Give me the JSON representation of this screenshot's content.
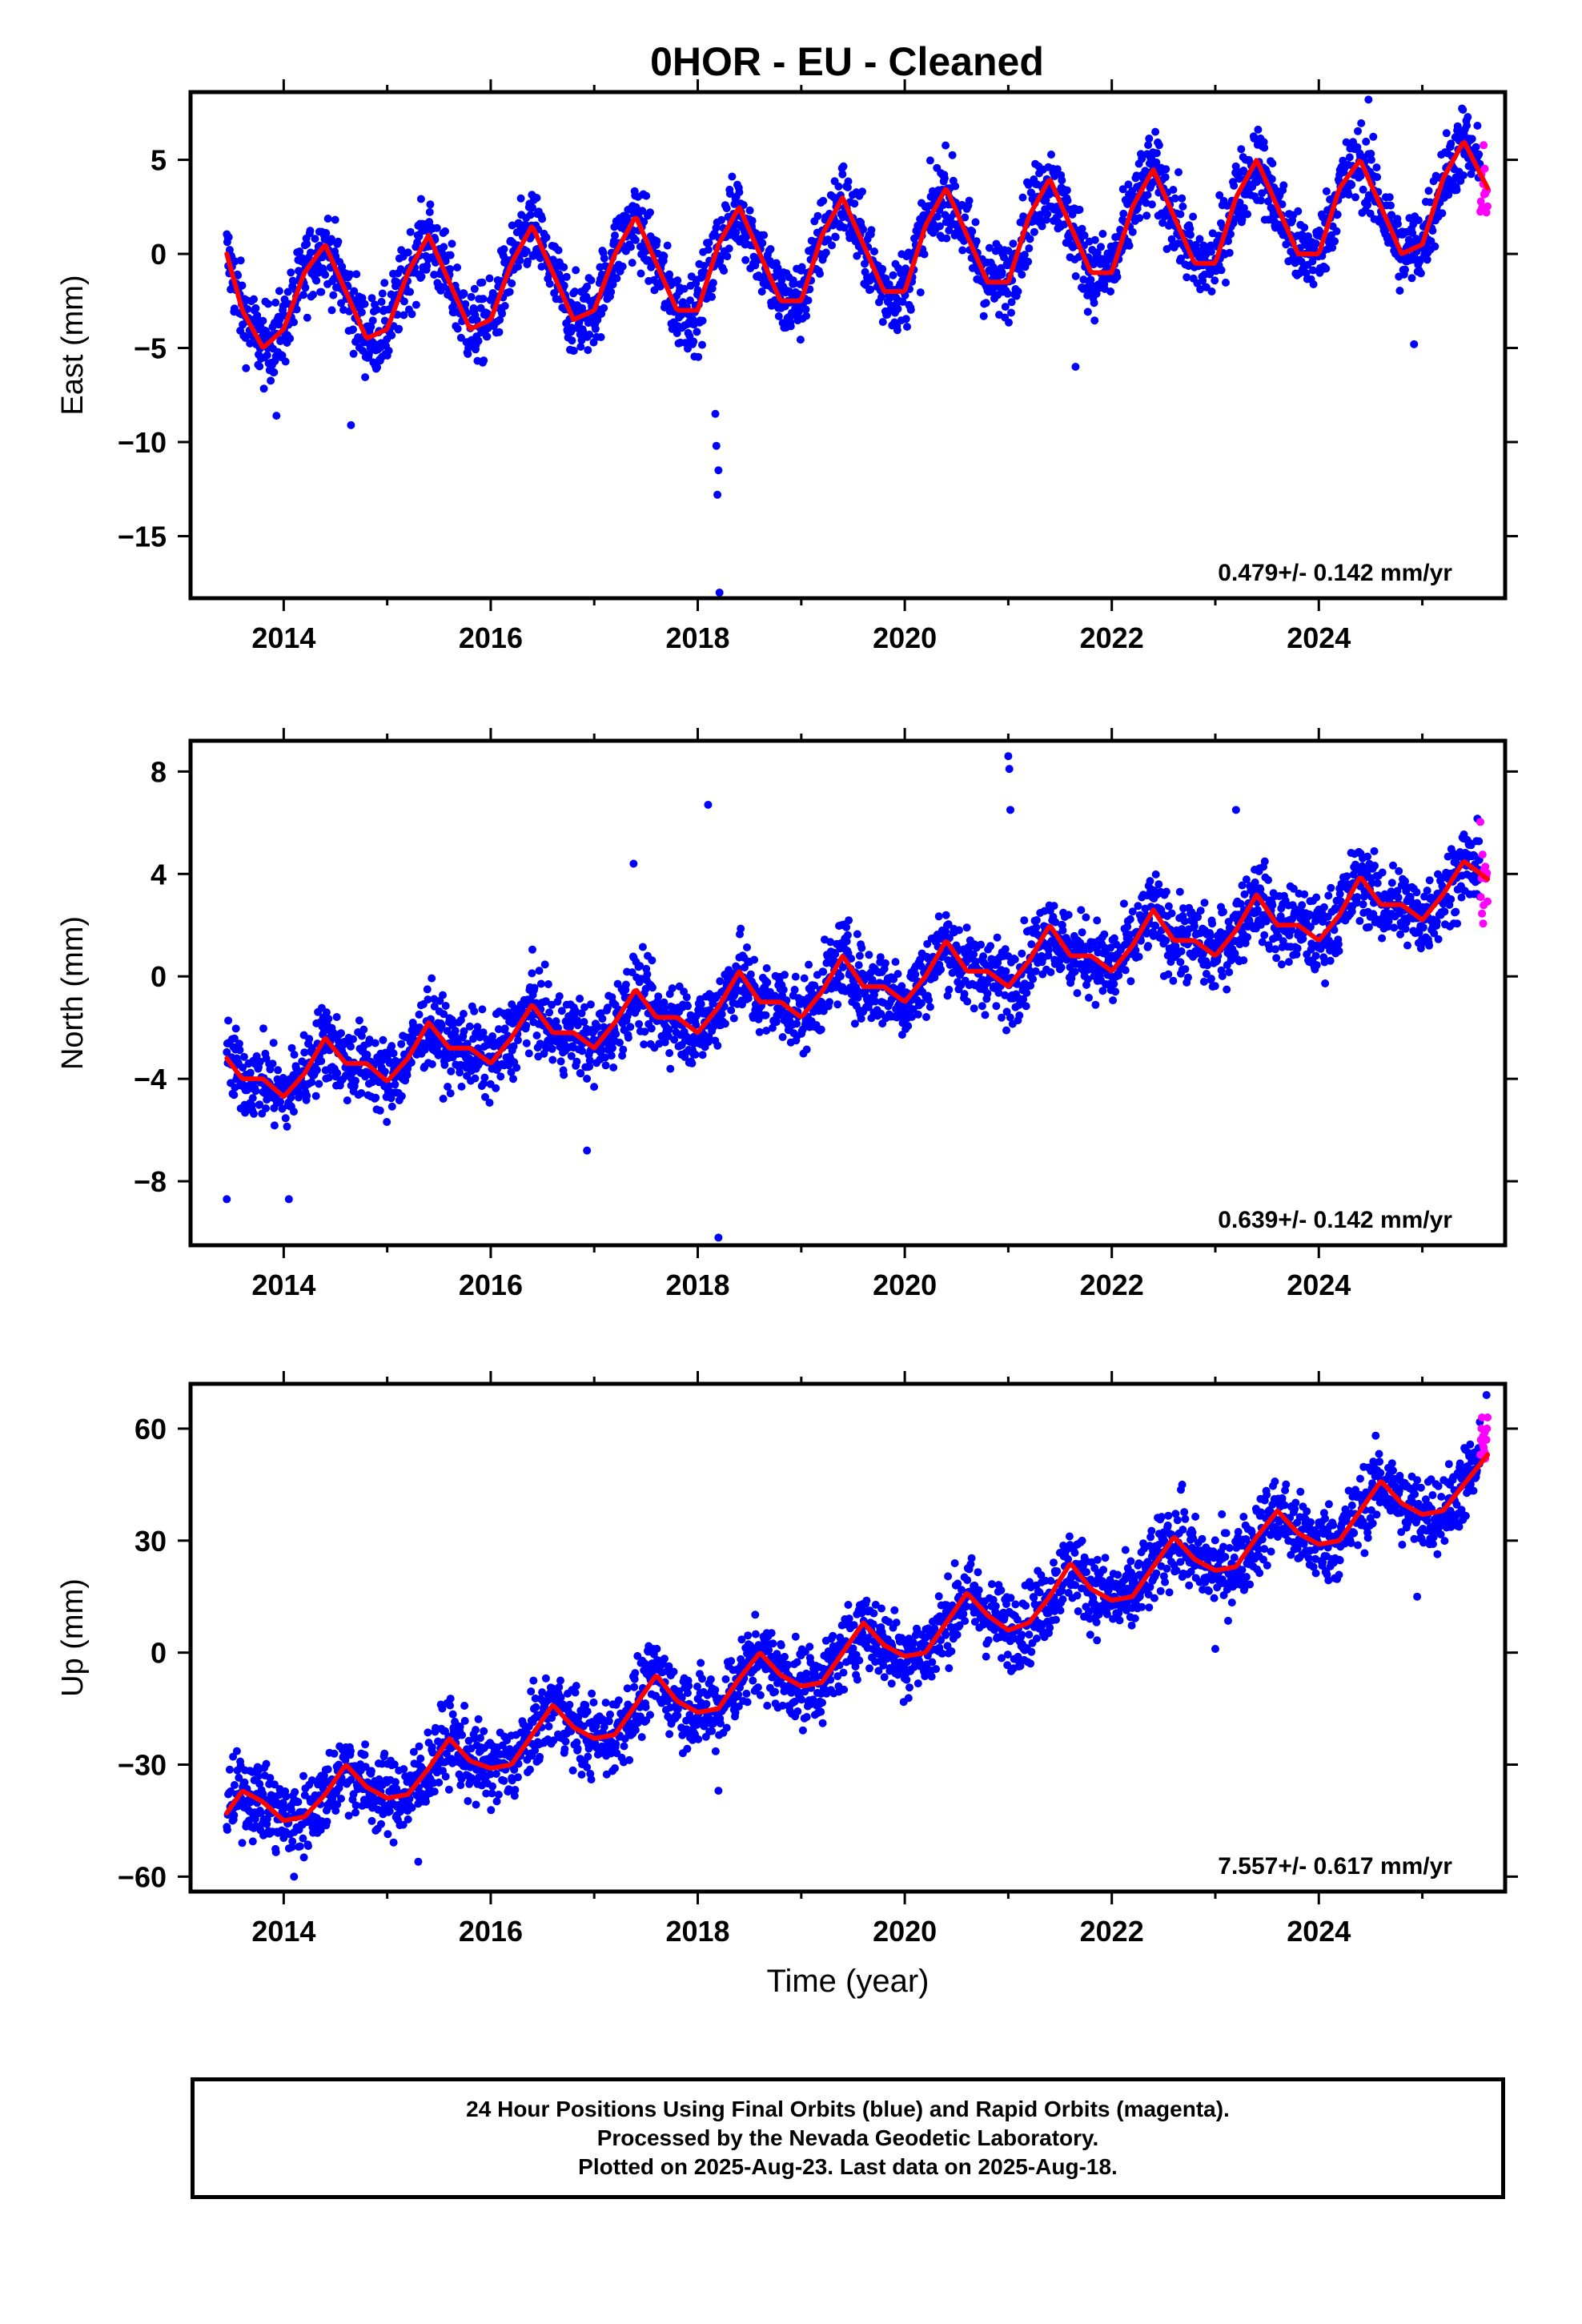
{
  "title": "0HOR  - EU - Cleaned",
  "colors": {
    "final_orbits": "#0000ff",
    "rapid_orbits": "#ff00ff",
    "model_fit": "#ff0000",
    "frame": "#000000"
  },
  "caption": {
    "line1": "24 Hour Positions Using Final Orbits (blue) and Rapid Orbits (magenta).",
    "line2": "Processed by the Nevada Geodetic Laboratory.",
    "line3": "Plotted on 2025-Aug-23. Last data on 2025-Aug-18."
  },
  "chart_data": [
    {
      "type": "scatter",
      "component": "east",
      "ylabel": "East (mm)",
      "xlabel": "",
      "xlim": [
        2013.1,
        2025.8
      ],
      "ylim": [
        -18.3,
        8.6
      ],
      "xticks": [
        2014,
        2016,
        2018,
        2020,
        2022,
        2024
      ],
      "yticks": [
        5,
        0,
        -5,
        -10,
        -15
      ],
      "rate_label": "0.479+/- 0.142 mm/yr",
      "rate_mm_per_yr": 0.479,
      "rate_sigma": 0.142,
      "data_start": 2013.45,
      "data_end": 2025.63,
      "rapid_start": 2025.56,
      "series": [
        {
          "name": "Final Orbits",
          "color": "#0000ff"
        },
        {
          "name": "Rapid Orbits",
          "color": "#ff00ff"
        }
      ],
      "model": {
        "x": [
          2013.45,
          2013.6,
          2013.8,
          2014.0,
          2014.2,
          2014.4,
          2014.6,
          2014.8,
          2015.0,
          2015.2,
          2015.4,
          2015.6,
          2015.8,
          2016.0,
          2016.2,
          2016.4,
          2016.6,
          2016.8,
          2017.0,
          2017.2,
          2017.4,
          2017.6,
          2017.8,
          2018.0,
          2018.2,
          2018.4,
          2018.6,
          2018.8,
          2019.0,
          2019.2,
          2019.4,
          2019.6,
          2019.8,
          2020.0,
          2020.2,
          2020.4,
          2020.6,
          2020.8,
          2021.0,
          2021.2,
          2021.4,
          2021.6,
          2021.8,
          2022.0,
          2022.2,
          2022.4,
          2022.6,
          2022.8,
          2023.0,
          2023.2,
          2023.4,
          2023.6,
          2023.8,
          2024.0,
          2024.2,
          2024.4,
          2024.6,
          2024.8,
          2025.0,
          2025.2,
          2025.4,
          2025.63
        ],
        "y": [
          0.0,
          -3.0,
          -5.0,
          -4.0,
          -1.0,
          0.5,
          -2.0,
          -4.5,
          -4.0,
          -1.0,
          1.0,
          -1.5,
          -4.0,
          -3.5,
          -0.5,
          1.5,
          -1.0,
          -3.5,
          -3.0,
          0.0,
          2.0,
          -0.5,
          -3.0,
          -3.0,
          0.5,
          2.5,
          0.0,
          -2.5,
          -2.5,
          1.0,
          3.0,
          0.5,
          -2.0,
          -2.0,
          1.5,
          3.5,
          1.0,
          -1.5,
          -1.5,
          2.0,
          4.0,
          1.5,
          -1.0,
          -1.0,
          2.5,
          4.5,
          2.0,
          -0.5,
          -0.5,
          3.0,
          5.0,
          2.5,
          0.0,
          0.0,
          3.5,
          5.0,
          2.5,
          0.0,
          0.5,
          4.0,
          6.0,
          3.5
        ]
      },
      "outliers": [
        {
          "x": 2018.17,
          "y": -8.5
        },
        {
          "x": 2018.18,
          "y": -10.2
        },
        {
          "x": 2018.2,
          "y": -11.5
        },
        {
          "x": 2018.19,
          "y": -12.8
        },
        {
          "x": 2018.21,
          "y": -18.0
        },
        {
          "x": 2014.65,
          "y": -9.1
        },
        {
          "x": 2013.93,
          "y": -8.6
        },
        {
          "x": 2021.65,
          "y": -6.0
        },
        {
          "x": 2024.92,
          "y": -4.8
        },
        {
          "x": 2024.48,
          "y": 8.2
        }
      ]
    },
    {
      "type": "scatter",
      "component": "north",
      "ylabel": "North (mm)",
      "xlabel": "",
      "xlim": [
        2013.1,
        2025.8
      ],
      "ylim": [
        -10.5,
        9.2
      ],
      "xticks": [
        2014,
        2016,
        2018,
        2020,
        2022,
        2024
      ],
      "yticks": [
        8,
        4,
        0,
        -4,
        -8
      ],
      "rate_label": "0.639+/- 0.142 mm/yr",
      "rate_mm_per_yr": 0.639,
      "rate_sigma": 0.142,
      "data_start": 2013.45,
      "data_end": 2025.63,
      "rapid_start": 2025.56,
      "series": [
        {
          "name": "Final Orbits",
          "color": "#0000ff"
        },
        {
          "name": "Rapid Orbits",
          "color": "#ff00ff"
        }
      ],
      "model": {
        "x": [
          2013.45,
          2013.6,
          2013.8,
          2014.0,
          2014.2,
          2014.4,
          2014.6,
          2014.8,
          2015.0,
          2015.2,
          2015.4,
          2015.6,
          2015.8,
          2016.0,
          2016.2,
          2016.4,
          2016.6,
          2016.8,
          2017.0,
          2017.2,
          2017.4,
          2017.6,
          2017.8,
          2018.0,
          2018.2,
          2018.4,
          2018.6,
          2018.8,
          2019.0,
          2019.2,
          2019.4,
          2019.6,
          2019.8,
          2020.0,
          2020.2,
          2020.4,
          2020.6,
          2020.8,
          2021.0,
          2021.2,
          2021.4,
          2021.6,
          2021.8,
          2022.0,
          2022.2,
          2022.4,
          2022.6,
          2022.8,
          2023.0,
          2023.2,
          2023.4,
          2023.6,
          2023.8,
          2024.0,
          2024.2,
          2024.4,
          2024.6,
          2024.8,
          2025.0,
          2025.2,
          2025.4,
          2025.63
        ],
        "y": [
          -3.2,
          -4.0,
          -4.0,
          -4.7,
          -3.8,
          -2.4,
          -3.4,
          -3.4,
          -4.1,
          -3.2,
          -1.8,
          -2.8,
          -2.8,
          -3.4,
          -2.4,
          -1.1,
          -2.2,
          -2.2,
          -2.8,
          -1.8,
          -0.5,
          -1.6,
          -1.6,
          -2.2,
          -1.2,
          0.2,
          -1.0,
          -1.0,
          -1.6,
          -0.6,
          0.8,
          -0.4,
          -0.4,
          -1.0,
          0.0,
          1.4,
          0.2,
          0.2,
          -0.4,
          0.6,
          2.0,
          0.8,
          0.8,
          0.2,
          1.2,
          2.6,
          1.4,
          1.4,
          0.8,
          1.8,
          3.2,
          2.0,
          2.0,
          1.4,
          2.4,
          3.9,
          2.8,
          2.8,
          2.2,
          3.2,
          4.5,
          3.8
        ]
      },
      "outliers": [
        {
          "x": 2018.1,
          "y": 6.7
        },
        {
          "x": 2021.0,
          "y": 8.6
        },
        {
          "x": 2021.01,
          "y": 8.1
        },
        {
          "x": 2021.02,
          "y": 6.5
        },
        {
          "x": 2018.2,
          "y": -10.2
        },
        {
          "x": 2017.38,
          "y": 4.4
        },
        {
          "x": 2016.93,
          "y": -6.8
        },
        {
          "x": 2013.45,
          "y": -8.7
        },
        {
          "x": 2014.05,
          "y": -8.7
        },
        {
          "x": 2023.2,
          "y": 6.5
        }
      ]
    },
    {
      "type": "scatter",
      "component": "up",
      "ylabel": "Up (mm)",
      "xlabel": "Time (year)",
      "xlim": [
        2013.1,
        2025.8
      ],
      "ylim": [
        -64,
        72
      ],
      "xticks": [
        2014,
        2016,
        2018,
        2020,
        2022,
        2024
      ],
      "yticks": [
        60,
        30,
        0,
        -30,
        -60
      ],
      "rate_label": "7.557+/- 0.617 mm/yr",
      "rate_mm_per_yr": 7.557,
      "rate_sigma": 0.617,
      "data_start": 2013.45,
      "data_end": 2025.63,
      "rapid_start": 2025.56,
      "series": [
        {
          "name": "Final Orbits",
          "color": "#0000ff"
        },
        {
          "name": "Rapid Orbits",
          "color": "#ff00ff"
        }
      ],
      "model": {
        "x": [
          2013.45,
          2013.6,
          2013.8,
          2014.0,
          2014.2,
          2014.4,
          2014.6,
          2014.8,
          2015.0,
          2015.2,
          2015.4,
          2015.6,
          2015.8,
          2016.0,
          2016.2,
          2016.4,
          2016.6,
          2016.8,
          2017.0,
          2017.2,
          2017.4,
          2017.6,
          2017.8,
          2018.0,
          2018.2,
          2018.4,
          2018.6,
          2018.8,
          2019.0,
          2019.2,
          2019.4,
          2019.6,
          2019.8,
          2020.0,
          2020.2,
          2020.4,
          2020.6,
          2020.8,
          2021.0,
          2021.2,
          2021.4,
          2021.6,
          2021.8,
          2022.0,
          2022.2,
          2022.4,
          2022.6,
          2022.8,
          2023.0,
          2023.2,
          2023.4,
          2023.6,
          2023.8,
          2024.0,
          2024.2,
          2024.4,
          2024.6,
          2024.8,
          2025.0,
          2025.2,
          2025.4,
          2025.63
        ],
        "y": [
          -43,
          -37,
          -40,
          -45,
          -44,
          -38,
          -30,
          -36,
          -39,
          -38,
          -31,
          -23,
          -29,
          -31,
          -30,
          -22,
          -14,
          -20,
          -23,
          -22,
          -14,
          -6,
          -13,
          -16,
          -15,
          -7,
          0,
          -6,
          -9,
          -8,
          0,
          8,
          2,
          -1,
          0,
          8,
          16,
          10,
          6,
          8,
          15,
          24,
          17,
          14,
          15,
          23,
          31,
          25,
          22,
          23,
          31,
          38,
          32,
          29,
          30,
          38,
          46,
          40,
          37,
          38,
          45,
          53
        ]
      },
      "outliers": [
        {
          "x": 2014.1,
          "y": -60
        },
        {
          "x": 2015.3,
          "y": -56
        },
        {
          "x": 2018.2,
          "y": -37
        },
        {
          "x": 2022.68,
          "y": 45
        },
        {
          "x": 2023.0,
          "y": 1
        },
        {
          "x": 2024.95,
          "y": 15
        },
        {
          "x": 2025.62,
          "y": 69
        }
      ],
      "rapid_values": [
        53,
        57,
        60,
        63,
        56,
        58,
        55,
        54,
        59,
        52
      ]
    }
  ]
}
